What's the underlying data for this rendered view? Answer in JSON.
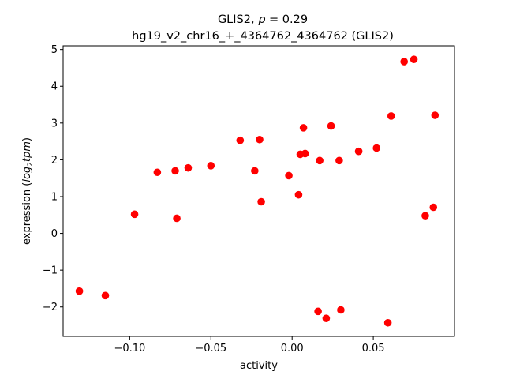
{
  "chart_data": {
    "type": "scatter",
    "title_line1": "GLIS2, ρ = 0.29",
    "title_line2": "hg19_v2_chr16_+_4364762_4364762 (GLIS2)",
    "xlabel": "activity",
    "ylabel": "expression (log₂tpm)",
    "xlim": [
      -0.141,
      0.1
    ],
    "ylim": [
      -2.8,
      5.1
    ],
    "xticks": [
      {
        "value": -0.1,
        "label": "−0.10"
      },
      {
        "value": -0.05,
        "label": "−0.05"
      },
      {
        "value": 0.0,
        "label": "0.00"
      },
      {
        "value": 0.05,
        "label": "0.05"
      }
    ],
    "yticks": [
      {
        "value": -2,
        "label": "−2"
      },
      {
        "value": -1,
        "label": "−1"
      },
      {
        "value": 0,
        "label": "0"
      },
      {
        "value": 1,
        "label": "1"
      },
      {
        "value": 2,
        "label": "2"
      },
      {
        "value": 3,
        "label": "3"
      },
      {
        "value": 4,
        "label": "4"
      },
      {
        "value": 5,
        "label": "5"
      }
    ],
    "marker_color": "#ff0000",
    "points": [
      {
        "x": -0.131,
        "y": -1.57
      },
      {
        "x": -0.115,
        "y": -1.69
      },
      {
        "x": -0.097,
        "y": 0.52
      },
      {
        "x": -0.083,
        "y": 1.66
      },
      {
        "x": -0.072,
        "y": 1.7
      },
      {
        "x": -0.071,
        "y": 0.41
      },
      {
        "x": -0.064,
        "y": 1.78
      },
      {
        "x": -0.05,
        "y": 1.84
      },
      {
        "x": -0.032,
        "y": 2.53
      },
      {
        "x": -0.023,
        "y": 1.7
      },
      {
        "x": -0.02,
        "y": 2.55
      },
      {
        "x": -0.019,
        "y": 0.86
      },
      {
        "x": -0.002,
        "y": 1.57
      },
      {
        "x": 0.004,
        "y": 1.05
      },
      {
        "x": 0.005,
        "y": 2.15
      },
      {
        "x": 0.007,
        "y": 2.87
      },
      {
        "x": 0.008,
        "y": 2.17
      },
      {
        "x": 0.016,
        "y": -2.12
      },
      {
        "x": 0.017,
        "y": 1.98
      },
      {
        "x": 0.021,
        "y": -2.31
      },
      {
        "x": 0.024,
        "y": 2.92
      },
      {
        "x": 0.029,
        "y": 1.98
      },
      {
        "x": 0.03,
        "y": -2.08
      },
      {
        "x": 0.041,
        "y": 2.23
      },
      {
        "x": 0.052,
        "y": 2.32
      },
      {
        "x": 0.059,
        "y": -2.43
      },
      {
        "x": 0.061,
        "y": 3.19
      },
      {
        "x": 0.069,
        "y": 4.67
      },
      {
        "x": 0.075,
        "y": 4.73
      },
      {
        "x": 0.082,
        "y": 0.48
      },
      {
        "x": 0.087,
        "y": 0.71
      },
      {
        "x": 0.088,
        "y": 3.21
      }
    ]
  }
}
